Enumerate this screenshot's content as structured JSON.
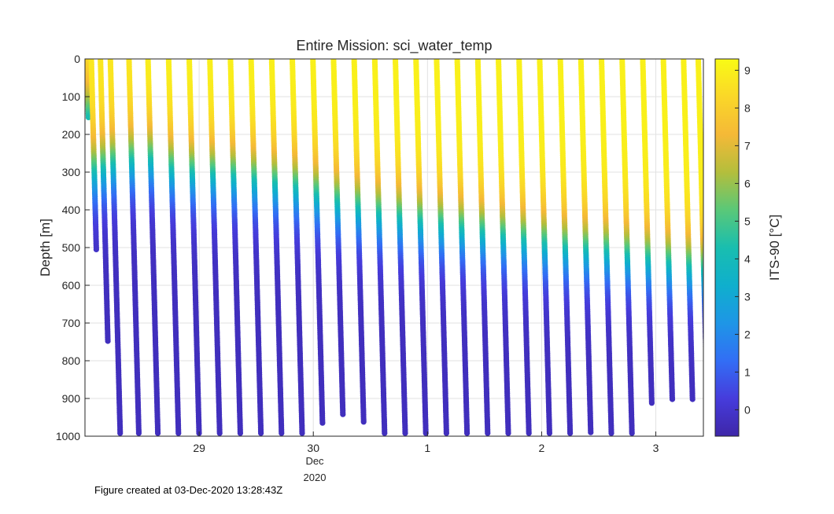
{
  "chart_data": {
    "type": "scatter",
    "title": "Entire Mission: sci_water_temp",
    "xlabel": "",
    "ylabel": "Depth [m]",
    "x_axis": {
      "kind": "date",
      "ticks": [
        {
          "date": "2020-11-29",
          "label": "29"
        },
        {
          "date": "2020-11-30",
          "label": "30"
        },
        {
          "date": "2020-12-01",
          "label": "1"
        },
        {
          "date": "2020-12-02",
          "label": "2"
        },
        {
          "date": "2020-12-03",
          "label": "3"
        }
      ],
      "month_label": "Dec",
      "year_label": "2020",
      "xlim": [
        "2020-11-28 00:00",
        "2020-12-03 10:00"
      ]
    },
    "y_axis": {
      "ylim": [
        0,
        1000
      ],
      "reversed": true,
      "ticks": [
        0,
        100,
        200,
        300,
        400,
        500,
        600,
        700,
        800,
        900,
        1000
      ]
    },
    "grid": true,
    "colorbar": {
      "label": "ITS-90 [°C]",
      "colormap": "parula",
      "clim": [
        -0.7,
        9.3
      ],
      "ticks": [
        0,
        1,
        2,
        3,
        4,
        5,
        6,
        7,
        8,
        9
      ]
    },
    "profiles": [
      {
        "time": "2020-11-28 00:25",
        "surface_temp": 8.8,
        "max_depth": 155,
        "thermocline_depth": 155
      },
      {
        "time": "2020-11-28 01:20",
        "surface_temp": 8.8,
        "max_depth": 505,
        "thermocline_depth": 300
      },
      {
        "time": "2020-11-28 03:15",
        "surface_temp": 8.8,
        "max_depth": 748,
        "thermocline_depth": 290
      },
      {
        "time": "2020-11-28 05:20",
        "surface_temp": 8.8,
        "max_depth": 992,
        "thermocline_depth": 280
      },
      {
        "time": "2020-11-28 09:15",
        "surface_temp": 8.8,
        "max_depth": 992,
        "thermocline_depth": 270
      },
      {
        "time": "2020-11-28 13:15",
        "surface_temp": 9.0,
        "max_depth": 992,
        "thermocline_depth": 265
      },
      {
        "time": "2020-11-28 17:35",
        "surface_temp": 9.0,
        "max_depth": 992,
        "thermocline_depth": 290
      },
      {
        "time": "2020-11-28 21:55",
        "surface_temp": 9.0,
        "max_depth": 992,
        "thermocline_depth": 300
      },
      {
        "time": "2020-11-29 02:15",
        "surface_temp": 9.0,
        "max_depth": 992,
        "thermocline_depth": 305
      },
      {
        "time": "2020-11-29 06:35",
        "surface_temp": 9.0,
        "max_depth": 992,
        "thermocline_depth": 310
      },
      {
        "time": "2020-11-29 10:55",
        "surface_temp": 9.0,
        "max_depth": 992,
        "thermocline_depth": 320
      },
      {
        "time": "2020-11-29 15:15",
        "surface_temp": 9.0,
        "max_depth": 992,
        "thermocline_depth": 330
      },
      {
        "time": "2020-11-29 19:35",
        "surface_temp": 9.0,
        "max_depth": 992,
        "thermocline_depth": 340
      },
      {
        "time": "2020-11-29 23:55",
        "surface_temp": 9.0,
        "max_depth": 965,
        "thermocline_depth": 360
      },
      {
        "time": "2020-11-30 04:15",
        "surface_temp": 9.0,
        "max_depth": 942,
        "thermocline_depth": 380
      },
      {
        "time": "2020-11-30 08:35",
        "surface_temp": 9.0,
        "max_depth": 962,
        "thermocline_depth": 395
      },
      {
        "time": "2020-11-30 12:55",
        "surface_temp": 9.0,
        "max_depth": 992,
        "thermocline_depth": 410
      },
      {
        "time": "2020-11-30 17:15",
        "surface_temp": 9.0,
        "max_depth": 992,
        "thermocline_depth": 420
      },
      {
        "time": "2020-11-30 21:35",
        "surface_temp": 9.0,
        "max_depth": 992,
        "thermocline_depth": 430
      },
      {
        "time": "2020-12-01 01:55",
        "surface_temp": 9.0,
        "max_depth": 992,
        "thermocline_depth": 440
      },
      {
        "time": "2020-12-01 06:15",
        "surface_temp": 9.0,
        "max_depth": 992,
        "thermocline_depth": 450
      },
      {
        "time": "2020-12-01 10:35",
        "surface_temp": 9.0,
        "max_depth": 992,
        "thermocline_depth": 460
      },
      {
        "time": "2020-12-01 14:55",
        "surface_temp": 9.0,
        "max_depth": 992,
        "thermocline_depth": 470
      },
      {
        "time": "2020-12-01 19:15",
        "surface_temp": 9.0,
        "max_depth": 992,
        "thermocline_depth": 480
      },
      {
        "time": "2020-12-01 23:35",
        "surface_temp": 9.0,
        "max_depth": 992,
        "thermocline_depth": 490
      },
      {
        "time": "2020-12-02 03:55",
        "surface_temp": 9.0,
        "max_depth": 992,
        "thermocline_depth": 500
      },
      {
        "time": "2020-12-02 08:15",
        "surface_temp": 9.0,
        "max_depth": 990,
        "thermocline_depth": 505
      },
      {
        "time": "2020-12-02 12:35",
        "surface_temp": 9.0,
        "max_depth": 992,
        "thermocline_depth": 510
      },
      {
        "time": "2020-12-02 16:55",
        "surface_temp": 9.0,
        "max_depth": 992,
        "thermocline_depth": 520
      },
      {
        "time": "2020-12-02 21:15",
        "surface_temp": 9.0,
        "max_depth": 912,
        "thermocline_depth": 530
      },
      {
        "time": "2020-12-03 01:35",
        "surface_temp": 9.0,
        "max_depth": 902,
        "thermocline_depth": 540
      },
      {
        "time": "2020-12-03 05:50",
        "surface_temp": 9.0,
        "max_depth": 902,
        "thermocline_depth": 550
      },
      {
        "time": "2020-12-03 08:55",
        "surface_temp": 9.0,
        "max_depth": 892,
        "thermocline_depth": 560
      }
    ],
    "deep_temp": -0.3
  },
  "footer": {
    "created_text": "Figure created at 03-Dec-2020 13:28:43Z"
  }
}
